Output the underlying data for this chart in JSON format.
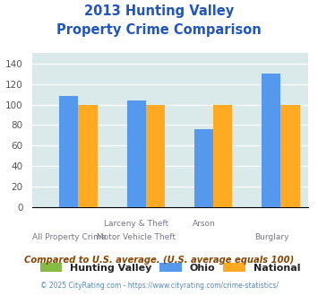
{
  "title_line1": "2013 Hunting Valley",
  "title_line2": "Property Crime Comparison",
  "title_color": "#2255bb",
  "groups": [
    "All Property Crime",
    "Larceny & Theft\nMotor Vehicle Theft",
    "Arson",
    "Burglary"
  ],
  "xlabels_row1": [
    "",
    "Larceny & Theft",
    "Arson",
    ""
  ],
  "xlabels_row2": [
    "All Property Crime",
    "Motor Vehicle Theft",
    "",
    "Burglary"
  ],
  "hunting_valley": [
    0,
    0,
    0,
    0
  ],
  "ohio": [
    108,
    104,
    76,
    130
  ],
  "national": [
    100,
    100,
    100,
    100
  ],
  "color_hv": "#88bb44",
  "color_ohio": "#5599ee",
  "color_national": "#ffaa22",
  "ylim": [
    0,
    150
  ],
  "yticks": [
    0,
    20,
    40,
    60,
    80,
    100,
    120,
    140
  ],
  "background_color": "#daeaea",
  "legend_labels": [
    "Hunting Valley",
    "Ohio",
    "National"
  ],
  "footnote1": "Compared to U.S. average. (U.S. average equals 100)",
  "footnote2": "© 2025 CityRating.com - https://www.cityrating.com/crime-statistics/",
  "footnote1_color": "#884400",
  "footnote2_color": "#5588bb"
}
